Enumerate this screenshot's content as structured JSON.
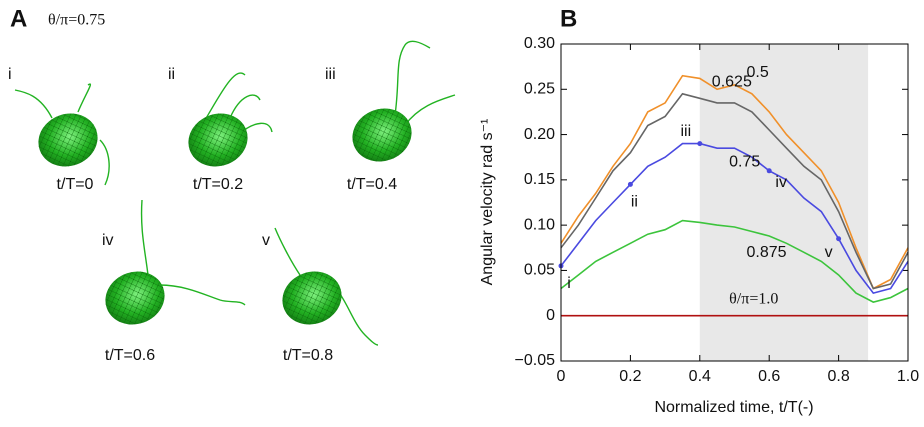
{
  "panel_a": {
    "label": "A",
    "condition": "θ/π=0.75",
    "frames": [
      {
        "index": "i",
        "time": "t/T=0"
      },
      {
        "index": "ii",
        "time": "t/T=0.2"
      },
      {
        "index": "iii",
        "time": "t/T=0.4"
      },
      {
        "index": "iv",
        "time": "t/T=0.6"
      },
      {
        "index": "v",
        "time": "t/T=0.8"
      }
    ]
  },
  "chart_data": {
    "type": "line",
    "panel_label": "B",
    "xlabel": "Normalized time, t/T(-)",
    "ylabel": "Angular velocity rad s⁻¹",
    "x": [
      0,
      0.05,
      0.1,
      0.15,
      0.2,
      0.25,
      0.3,
      0.35,
      0.4,
      0.45,
      0.5,
      0.55,
      0.6,
      0.65,
      0.7,
      0.75,
      0.8,
      0.85,
      0.9,
      0.95,
      1.0
    ],
    "series": [
      {
        "name": "0.5",
        "color": "#f0902a",
        "values": [
          0.08,
          0.11,
          0.135,
          0.165,
          0.19,
          0.225,
          0.235,
          0.265,
          0.262,
          0.25,
          0.255,
          0.245,
          0.225,
          0.2,
          0.18,
          0.16,
          0.125,
          0.075,
          0.03,
          0.04,
          0.075
        ]
      },
      {
        "name": "0.625",
        "color": "#666666",
        "values": [
          0.075,
          0.1,
          0.13,
          0.16,
          0.18,
          0.21,
          0.22,
          0.245,
          0.24,
          0.235,
          0.235,
          0.225,
          0.205,
          0.185,
          0.165,
          0.15,
          0.115,
          0.07,
          0.03,
          0.035,
          0.07
        ]
      },
      {
        "name": "0.75",
        "color": "#4a4ae0",
        "values": [
          0.055,
          0.08,
          0.105,
          0.125,
          0.145,
          0.165,
          0.175,
          0.19,
          0.19,
          0.185,
          0.185,
          0.175,
          0.16,
          0.15,
          0.13,
          0.115,
          0.085,
          0.05,
          0.025,
          0.03,
          0.06
        ]
      },
      {
        "name": "0.875",
        "color": "#3cc43c",
        "values": [
          0.03,
          0.045,
          0.06,
          0.07,
          0.08,
          0.09,
          0.095,
          0.105,
          0.103,
          0.1,
          0.098,
          0.093,
          0.088,
          0.08,
          0.07,
          0.06,
          0.045,
          0.025,
          0.015,
          0.02,
          0.03
        ]
      },
      {
        "name": "θ/π=1.0",
        "color": "#b01010",
        "values": [
          0,
          0,
          0,
          0,
          0,
          0,
          0,
          0,
          0,
          0,
          0,
          0,
          0,
          0,
          0,
          0,
          0,
          0,
          0,
          0,
          0
        ]
      }
    ],
    "annotations": [
      {
        "text": "i",
        "x": 0
      },
      {
        "text": "ii",
        "x": 0.2
      },
      {
        "text": "iii",
        "x": 0.4
      },
      {
        "text": "iv",
        "x": 0.6
      },
      {
        "text": "v",
        "x": 0.8
      }
    ],
    "shaded_x": [
      0.4,
      0.885
    ],
    "shade_color": "#e8e8e8",
    "xlim": [
      0,
      1.0
    ],
    "xticks": [
      0,
      0.2,
      0.4,
      0.6,
      0.8,
      {
        "value": 1.0,
        "label": "1.0"
      }
    ],
    "ylim": [
      -0.05,
      0.3
    ],
    "yticks": [
      {
        "value": -0.05,
        "label": "−0.05"
      },
      0,
      0.05,
      {
        "value": 0.1,
        "label": "0.10"
      },
      0.15,
      {
        "value": 0.2,
        "label": "0.20"
      },
      0.25,
      {
        "value": 0.3,
        "label": "0.30"
      }
    ]
  }
}
